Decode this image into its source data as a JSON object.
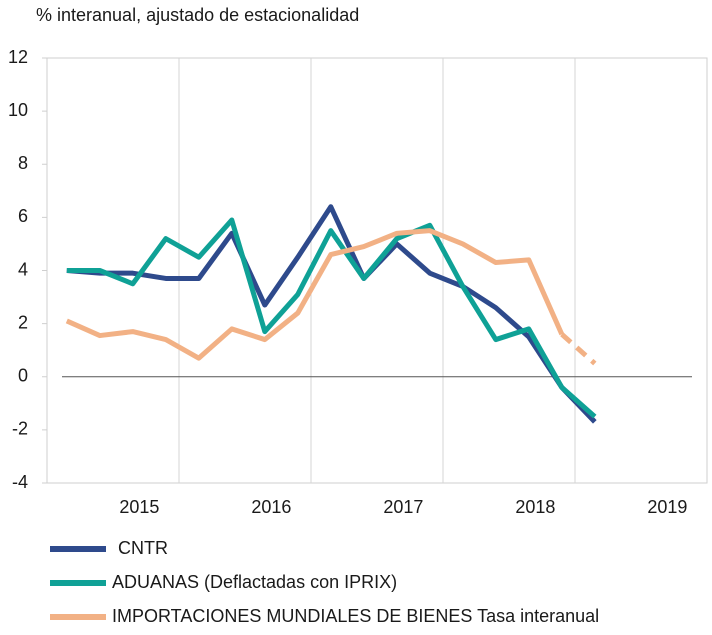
{
  "chart_data": {
    "type": "line",
    "title": "% interanual, ajustado de estacionalidad",
    "x": [
      2015.0,
      2015.25,
      2015.5,
      2015.75,
      2016.0,
      2016.25,
      2016.5,
      2016.75,
      2017.0,
      2017.25,
      2017.5,
      2017.75,
      2018.0,
      2018.25,
      2018.5,
      2018.75,
      2019.0
    ],
    "series": [
      {
        "name": "CNTR",
        "color": "#2e4a8c",
        "values": [
          4.0,
          3.9,
          3.9,
          3.7,
          3.7,
          5.4,
          2.7,
          4.5,
          6.4,
          3.7,
          5.0,
          3.9,
          3.4,
          2.6,
          1.5,
          -0.4,
          -1.7
        ]
      },
      {
        "name": "ADUANAS (Deflactadas con IPRIX)",
        "color": "#0fa196",
        "values": [
          4.0,
          4.0,
          3.5,
          5.2,
          4.5,
          5.9,
          1.7,
          3.1,
          5.5,
          3.7,
          5.2,
          5.7,
          3.4,
          1.4,
          1.8,
          -0.4,
          -1.5
        ]
      },
      {
        "name": "IMPORTACIONES MUNDIALES DE BIENES Tasa interanual",
        "color": "#f2b185",
        "dash_last": true,
        "values": [
          2.1,
          1.55,
          1.7,
          1.4,
          0.7,
          1.8,
          1.4,
          2.4,
          4.6,
          4.9,
          5.4,
          5.5,
          5.0,
          4.3,
          4.4,
          1.6,
          0.5
        ]
      }
    ],
    "xlim": [
      2014.85,
      2019.85
    ],
    "xticks": [
      {
        "value": 2015.55,
        "label": "2015"
      },
      {
        "value": 2016.55,
        "label": "2016"
      },
      {
        "value": 2017.55,
        "label": "2017"
      },
      {
        "value": 2018.55,
        "label": "2018"
      },
      {
        "value": 2019.55,
        "label": "2019"
      }
    ],
    "xgrid": [
      2015.85,
      2016.85,
      2017.85,
      2018.85
    ],
    "ylim": [
      -4,
      12
    ],
    "yticks": [
      -4,
      -2,
      0,
      2,
      4,
      6,
      8,
      10,
      12
    ],
    "zero_line": true
  }
}
